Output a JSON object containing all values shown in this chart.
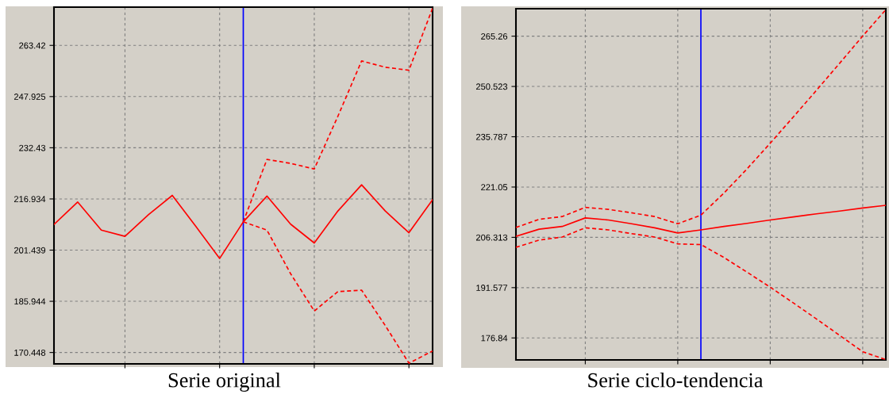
{
  "chart_data": [
    {
      "type": "line",
      "title": "Serie original",
      "categories": [
        null,
        null,
        null,
        null,
        null,
        null,
        null,
        null,
        null,
        null,
        null,
        null,
        null,
        null,
        null,
        null,
        null
      ],
      "series": [
        {
          "color": "#ff0000",
          "line_style": "solid",
          "values": [
            209.2,
            216.0,
            207.5,
            205.6,
            212.2,
            218.0,
            208.6,
            198.9,
            210.0,
            217.8,
            209.3,
            203.6,
            213.3,
            221.2,
            213.3,
            206.7,
            216.7
          ]
        },
        {
          "color": "#ff0000",
          "line_style": "dashed",
          "values": [
            null,
            null,
            null,
            null,
            null,
            null,
            null,
            null,
            210.0,
            228.9,
            227.7,
            226.0,
            242.0,
            258.7,
            256.8,
            255.9,
            274.7
          ]
        },
        {
          "color": "#ff0000",
          "line_style": "dashed",
          "values": [
            null,
            null,
            null,
            null,
            null,
            null,
            null,
            null,
            210.0,
            207.5,
            194.3,
            183.0,
            188.9,
            189.3,
            178.6,
            167.2,
            170.9
          ]
        }
      ],
      "ylim": [
        167.0,
        275.0
      ],
      "yticks": [
        170.448,
        185.944,
        201.439,
        216.934,
        232.43,
        247.925,
        263.42
      ],
      "grid": true,
      "tick_labels": "y",
      "marker": "none"
    },
    {
      "type": "line",
      "title": "Serie ciclo-tendencia",
      "categories": [
        null,
        null,
        null,
        null,
        null,
        null,
        null,
        null,
        null,
        null,
        null,
        null,
        null,
        null,
        null,
        null,
        null
      ],
      "series": [
        {
          "color": "#ff0000",
          "line_style": "solid",
          "values": [
            206.6,
            208.7,
            209.5,
            212.0,
            211.4,
            210.3,
            209.1,
            207.6,
            208.5,
            209.5,
            210.4,
            211.4,
            212.3,
            213.2,
            214.0,
            214.9,
            215.7
          ]
        },
        {
          "color": "#ff0000",
          "line_style": "dashed",
          "values": [
            209.2,
            211.6,
            212.4,
            215.1,
            214.5,
            213.5,
            212.4,
            210.3,
            212.8,
            219.3,
            226.4,
            233.9,
            241.6,
            249.4,
            257.3,
            265.3,
            273.0
          ]
        },
        {
          "color": "#ff0000",
          "line_style": "dashed",
          "values": [
            203.4,
            205.5,
            206.4,
            209.1,
            208.5,
            207.4,
            206.4,
            204.4,
            204.2,
            200.4,
            196.1,
            191.7,
            187.1,
            182.4,
            177.6,
            172.8,
            170.5
          ]
        }
      ],
      "ylim": [
        170.4,
        273.3
      ],
      "yticks": [
        176.84,
        191.577,
        206.313,
        221.05,
        235.787,
        250.523,
        265.26
      ],
      "grid": true,
      "tick_labels": "y",
      "marker": "none"
    }
  ]
}
